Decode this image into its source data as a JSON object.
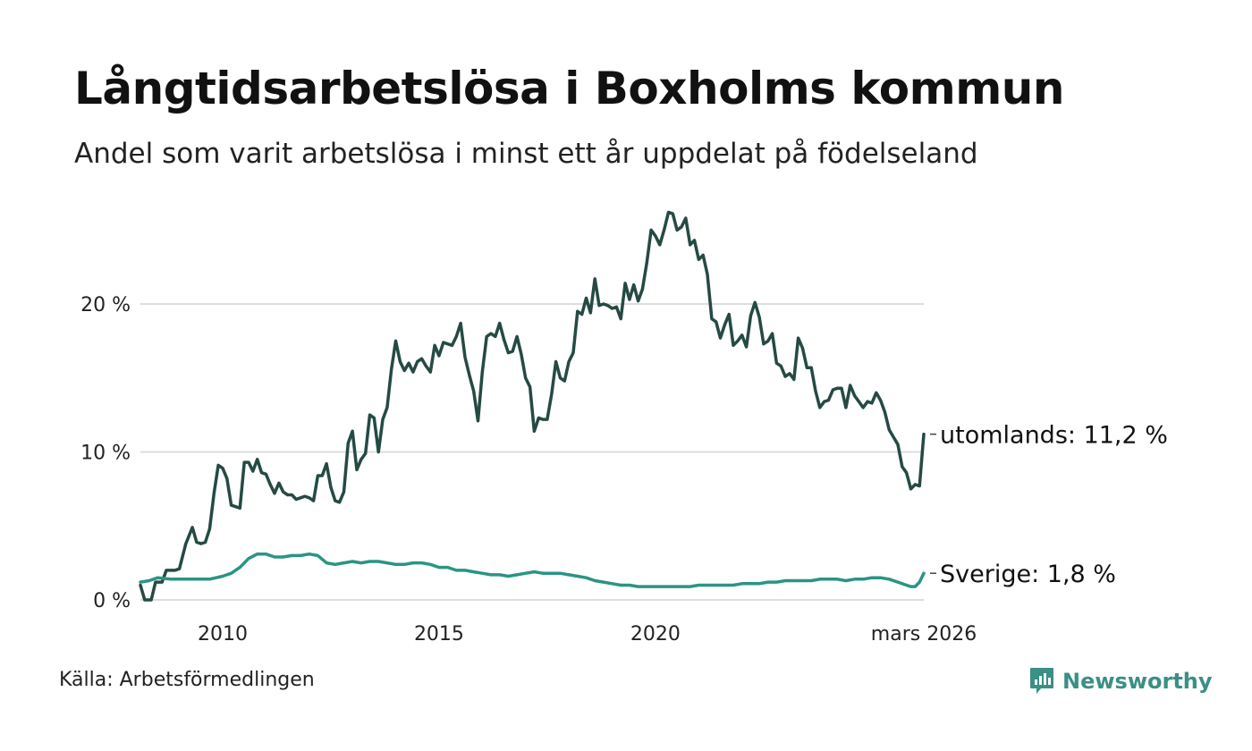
{
  "header": {
    "title": "Långtidsarbetslösa i Boxholms kommun",
    "subtitle": "Andel som varit arbetslösa i minst ett år uppdelat på födelseland"
  },
  "footer": {
    "source": "Källa: Arbetsförmedlingen",
    "brand": "Newsworthy"
  },
  "colors": {
    "utomlands": "#254a44",
    "sverige": "#2a9485",
    "grid": "#dddddd",
    "brand": "#3a8f86"
  },
  "chart_data": {
    "type": "line",
    "title": "Långtidsarbetslösa i Boxholms kommun",
    "subtitle": "Andel som varit arbetslösa i minst ett år uppdelat på födelseland",
    "xlabel": "",
    "ylabel": "",
    "xlim": [
      2008.1,
      2026.2
    ],
    "ylim": [
      0,
      26
    ],
    "grid": true,
    "x_ticks": [
      {
        "value": 2010,
        "label": "2010"
      },
      {
        "value": 2015,
        "label": "2015"
      },
      {
        "value": 2020,
        "label": "2020"
      },
      {
        "value": 2026.2,
        "label": "mars 2026"
      }
    ],
    "y_ticks": [
      {
        "value": 0,
        "label": "0 %"
      },
      {
        "value": 10,
        "label": "10 %"
      },
      {
        "value": 20,
        "label": "20 %"
      }
    ],
    "series": [
      {
        "name": "utomlands",
        "end_label": "utomlands: 11,2 %",
        "points": [
          [
            2008.1,
            1.0
          ],
          [
            2008.2,
            0.0
          ],
          [
            2008.35,
            0.0
          ],
          [
            2008.45,
            1.2
          ],
          [
            2008.6,
            1.2
          ],
          [
            2008.7,
            2.0
          ],
          [
            2008.9,
            2.0
          ],
          [
            2009.0,
            2.1
          ],
          [
            2009.15,
            3.8
          ],
          [
            2009.3,
            4.9
          ],
          [
            2009.4,
            3.9
          ],
          [
            2009.5,
            3.8
          ],
          [
            2009.6,
            3.9
          ],
          [
            2009.7,
            4.8
          ],
          [
            2009.8,
            7.2
          ],
          [
            2009.9,
            9.1
          ],
          [
            2010.0,
            8.9
          ],
          [
            2010.1,
            8.2
          ],
          [
            2010.2,
            6.4
          ],
          [
            2010.3,
            6.3
          ],
          [
            2010.4,
            6.2
          ],
          [
            2010.5,
            9.3
          ],
          [
            2010.6,
            9.3
          ],
          [
            2010.7,
            8.7
          ],
          [
            2010.8,
            9.5
          ],
          [
            2010.9,
            8.6
          ],
          [
            2011.0,
            8.5
          ],
          [
            2011.1,
            7.8
          ],
          [
            2011.2,
            7.2
          ],
          [
            2011.3,
            7.9
          ],
          [
            2011.4,
            7.3
          ],
          [
            2011.5,
            7.1
          ],
          [
            2011.6,
            7.1
          ],
          [
            2011.7,
            6.8
          ],
          [
            2011.8,
            6.9
          ],
          [
            2011.9,
            7.0
          ],
          [
            2012.0,
            6.9
          ],
          [
            2012.1,
            6.7
          ],
          [
            2012.2,
            8.4
          ],
          [
            2012.3,
            8.4
          ],
          [
            2012.4,
            9.2
          ],
          [
            2012.5,
            7.6
          ],
          [
            2012.6,
            6.7
          ],
          [
            2012.7,
            6.6
          ],
          [
            2012.8,
            7.3
          ],
          [
            2012.9,
            10.6
          ],
          [
            2013.0,
            11.4
          ],
          [
            2013.1,
            8.8
          ],
          [
            2013.2,
            9.5
          ],
          [
            2013.3,
            9.9
          ],
          [
            2013.4,
            12.5
          ],
          [
            2013.5,
            12.3
          ],
          [
            2013.6,
            10.0
          ],
          [
            2013.7,
            12.2
          ],
          [
            2013.8,
            13.0
          ],
          [
            2013.9,
            15.6
          ],
          [
            2014.0,
            17.5
          ],
          [
            2014.1,
            16.1
          ],
          [
            2014.2,
            15.5
          ],
          [
            2014.3,
            16.0
          ],
          [
            2014.4,
            15.4
          ],
          [
            2014.5,
            16.1
          ],
          [
            2014.6,
            16.3
          ],
          [
            2014.7,
            15.8
          ],
          [
            2014.8,
            15.4
          ],
          [
            2014.9,
            17.2
          ],
          [
            2015.0,
            16.5
          ],
          [
            2015.1,
            17.4
          ],
          [
            2015.2,
            17.3
          ],
          [
            2015.3,
            17.2
          ],
          [
            2015.4,
            17.8
          ],
          [
            2015.5,
            18.7
          ],
          [
            2015.6,
            16.4
          ],
          [
            2015.7,
            15.2
          ],
          [
            2015.8,
            14.1
          ],
          [
            2015.9,
            12.1
          ],
          [
            2016.0,
            15.4
          ],
          [
            2016.1,
            17.8
          ],
          [
            2016.2,
            18.0
          ],
          [
            2016.3,
            17.8
          ],
          [
            2016.4,
            18.7
          ],
          [
            2016.5,
            17.6
          ],
          [
            2016.6,
            16.7
          ],
          [
            2016.7,
            16.8
          ],
          [
            2016.8,
            17.8
          ],
          [
            2016.9,
            16.6
          ],
          [
            2017.0,
            15.0
          ],
          [
            2017.1,
            14.4
          ],
          [
            2017.2,
            11.4
          ],
          [
            2017.3,
            12.3
          ],
          [
            2017.4,
            12.2
          ],
          [
            2017.5,
            12.2
          ],
          [
            2017.6,
            13.9
          ],
          [
            2017.7,
            16.1
          ],
          [
            2017.8,
            15.0
          ],
          [
            2017.9,
            14.8
          ],
          [
            2018.0,
            16.1
          ],
          [
            2018.1,
            16.7
          ],
          [
            2018.2,
            19.5
          ],
          [
            2018.3,
            19.3
          ],
          [
            2018.4,
            20.4
          ],
          [
            2018.5,
            19.4
          ],
          [
            2018.6,
            21.7
          ],
          [
            2018.7,
            19.9
          ],
          [
            2018.8,
            20.0
          ],
          [
            2018.9,
            19.9
          ],
          [
            2019.0,
            19.7
          ],
          [
            2019.1,
            19.8
          ],
          [
            2019.2,
            19.0
          ],
          [
            2019.3,
            21.4
          ],
          [
            2019.4,
            20.3
          ],
          [
            2019.5,
            21.3
          ],
          [
            2019.6,
            20.2
          ],
          [
            2019.7,
            21.0
          ],
          [
            2019.8,
            22.8
          ],
          [
            2019.9,
            25.0
          ],
          [
            2020.0,
            24.6
          ],
          [
            2020.1,
            24.0
          ],
          [
            2020.2,
            25.0
          ],
          [
            2020.3,
            26.2
          ],
          [
            2020.4,
            26.1
          ],
          [
            2020.5,
            25.0
          ],
          [
            2020.6,
            25.2
          ],
          [
            2020.7,
            25.8
          ],
          [
            2020.8,
            24.0
          ],
          [
            2020.9,
            24.3
          ],
          [
            2021.0,
            23.0
          ],
          [
            2021.1,
            23.3
          ],
          [
            2021.2,
            22.0
          ],
          [
            2021.3,
            19.0
          ],
          [
            2021.4,
            18.8
          ],
          [
            2021.5,
            17.7
          ],
          [
            2021.6,
            18.6
          ],
          [
            2021.7,
            19.3
          ],
          [
            2021.8,
            17.2
          ],
          [
            2021.9,
            17.5
          ],
          [
            2022.0,
            17.9
          ],
          [
            2022.1,
            17.1
          ],
          [
            2022.2,
            19.2
          ],
          [
            2022.3,
            20.1
          ],
          [
            2022.4,
            19.1
          ],
          [
            2022.5,
            17.3
          ],
          [
            2022.6,
            17.5
          ],
          [
            2022.7,
            18.0
          ],
          [
            2022.8,
            16.0
          ],
          [
            2022.9,
            15.8
          ],
          [
            2023.0,
            15.1
          ],
          [
            2023.1,
            15.3
          ],
          [
            2023.2,
            14.9
          ],
          [
            2023.3,
            17.7
          ],
          [
            2023.4,
            17.0
          ],
          [
            2023.5,
            15.7
          ],
          [
            2023.6,
            15.7
          ],
          [
            2023.7,
            14.1
          ],
          [
            2023.8,
            13.0
          ],
          [
            2023.9,
            13.4
          ],
          [
            2024.0,
            13.5
          ],
          [
            2024.1,
            14.2
          ],
          [
            2024.2,
            14.3
          ],
          [
            2024.3,
            14.3
          ],
          [
            2024.4,
            13.0
          ],
          [
            2024.5,
            14.5
          ],
          [
            2024.6,
            13.8
          ],
          [
            2024.7,
            13.4
          ],
          [
            2024.8,
            13.0
          ],
          [
            2024.9,
            13.4
          ],
          [
            2025.0,
            13.3
          ],
          [
            2025.1,
            14.0
          ],
          [
            2025.2,
            13.5
          ],
          [
            2025.3,
            12.7
          ],
          [
            2025.4,
            11.5
          ],
          [
            2025.5,
            11.0
          ],
          [
            2025.6,
            10.5
          ],
          [
            2025.7,
            9.0
          ],
          [
            2025.8,
            8.6
          ],
          [
            2025.9,
            7.5
          ],
          [
            2026.0,
            7.8
          ],
          [
            2026.1,
            7.7
          ],
          [
            2026.2,
            11.2
          ]
        ]
      },
      {
        "name": "Sverige",
        "end_label": "Sverige:  1,8 %",
        "points": [
          [
            2008.1,
            1.2
          ],
          [
            2008.3,
            1.3
          ],
          [
            2008.5,
            1.5
          ],
          [
            2008.8,
            1.4
          ],
          [
            2009.1,
            1.4
          ],
          [
            2009.4,
            1.4
          ],
          [
            2009.7,
            1.4
          ],
          [
            2010.0,
            1.6
          ],
          [
            2010.2,
            1.8
          ],
          [
            2010.4,
            2.2
          ],
          [
            2010.6,
            2.8
          ],
          [
            2010.8,
            3.1
          ],
          [
            2011.0,
            3.1
          ],
          [
            2011.2,
            2.9
          ],
          [
            2011.4,
            2.9
          ],
          [
            2011.6,
            3.0
          ],
          [
            2011.8,
            3.0
          ],
          [
            2012.0,
            3.1
          ],
          [
            2012.2,
            3.0
          ],
          [
            2012.4,
            2.5
          ],
          [
            2012.6,
            2.4
          ],
          [
            2012.8,
            2.5
          ],
          [
            2013.0,
            2.6
          ],
          [
            2013.2,
            2.5
          ],
          [
            2013.4,
            2.6
          ],
          [
            2013.6,
            2.6
          ],
          [
            2013.8,
            2.5
          ],
          [
            2014.0,
            2.4
          ],
          [
            2014.2,
            2.4
          ],
          [
            2014.4,
            2.5
          ],
          [
            2014.6,
            2.5
          ],
          [
            2014.8,
            2.4
          ],
          [
            2015.0,
            2.2
          ],
          [
            2015.2,
            2.2
          ],
          [
            2015.4,
            2.0
          ],
          [
            2015.6,
            2.0
          ],
          [
            2015.8,
            1.9
          ],
          [
            2016.0,
            1.8
          ],
          [
            2016.2,
            1.7
          ],
          [
            2016.4,
            1.7
          ],
          [
            2016.6,
            1.6
          ],
          [
            2016.8,
            1.7
          ],
          [
            2017.0,
            1.8
          ],
          [
            2017.2,
            1.9
          ],
          [
            2017.4,
            1.8
          ],
          [
            2017.6,
            1.8
          ],
          [
            2017.8,
            1.8
          ],
          [
            2018.0,
            1.7
          ],
          [
            2018.2,
            1.6
          ],
          [
            2018.4,
            1.5
          ],
          [
            2018.6,
            1.3
          ],
          [
            2018.8,
            1.2
          ],
          [
            2019.0,
            1.1
          ],
          [
            2019.2,
            1.0
          ],
          [
            2019.4,
            1.0
          ],
          [
            2019.6,
            0.9
          ],
          [
            2019.8,
            0.9
          ],
          [
            2020.0,
            0.9
          ],
          [
            2020.2,
            0.9
          ],
          [
            2020.4,
            0.9
          ],
          [
            2020.6,
            0.9
          ],
          [
            2020.8,
            0.9
          ],
          [
            2021.0,
            1.0
          ],
          [
            2021.2,
            1.0
          ],
          [
            2021.4,
            1.0
          ],
          [
            2021.6,
            1.0
          ],
          [
            2021.8,
            1.0
          ],
          [
            2022.0,
            1.1
          ],
          [
            2022.2,
            1.1
          ],
          [
            2022.4,
            1.1
          ],
          [
            2022.6,
            1.2
          ],
          [
            2022.8,
            1.2
          ],
          [
            2023.0,
            1.3
          ],
          [
            2023.2,
            1.3
          ],
          [
            2023.4,
            1.3
          ],
          [
            2023.6,
            1.3
          ],
          [
            2023.8,
            1.4
          ],
          [
            2024.0,
            1.4
          ],
          [
            2024.2,
            1.4
          ],
          [
            2024.4,
            1.3
          ],
          [
            2024.6,
            1.4
          ],
          [
            2024.8,
            1.4
          ],
          [
            2025.0,
            1.5
          ],
          [
            2025.2,
            1.5
          ],
          [
            2025.4,
            1.4
          ],
          [
            2025.6,
            1.2
          ],
          [
            2025.8,
            1.0
          ],
          [
            2025.9,
            0.9
          ],
          [
            2026.0,
            0.9
          ],
          [
            2026.1,
            1.2
          ],
          [
            2026.2,
            1.8
          ]
        ]
      }
    ]
  }
}
